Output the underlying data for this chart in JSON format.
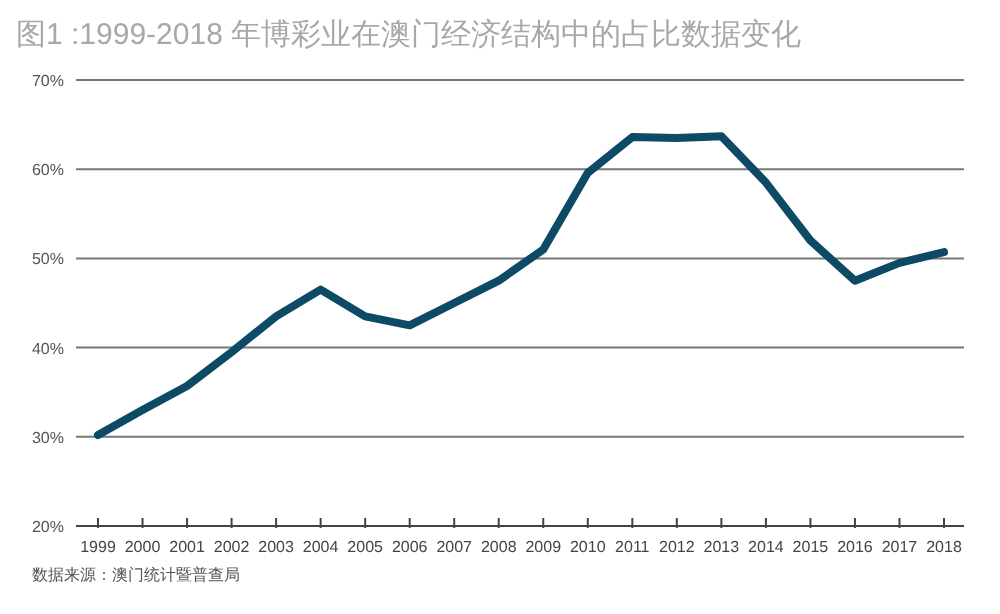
{
  "chart_data": {
    "type": "line",
    "title": "图1 :1999-2018 年博彩业在澳门经济结构中的占比数据变化",
    "annotations": [
      "数据来源：澳门统计暨普查局"
    ],
    "categories": [
      "1999",
      "2000",
      "2001",
      "2002",
      "2003",
      "2004",
      "2005",
      "2006",
      "2007",
      "2008",
      "2009",
      "2010",
      "2011",
      "2012",
      "2013",
      "2014",
      "2015",
      "2016",
      "2017",
      "2018"
    ],
    "series": [
      {
        "color": "#0d4a66",
        "values": [
          30.2,
          33,
          35.7,
          39.5,
          43.5,
          46.5,
          43.5,
          42.5,
          45,
          47.5,
          51,
          59.6,
          63.6,
          63.5,
          63.7,
          58.5,
          52,
          47.5,
          49.5,
          50.7
        ]
      }
    ],
    "ylim": [
      20,
      70
    ],
    "yticks": [
      {
        "value": 20,
        "label": "20%"
      },
      {
        "value": 30,
        "label": "30%"
      },
      {
        "value": 40,
        "label": "40%"
      },
      {
        "value": 50,
        "label": "50%"
      },
      {
        "value": 60,
        "label": "60%"
      },
      {
        "value": 70,
        "label": "70%"
      }
    ],
    "grid": "y"
  }
}
